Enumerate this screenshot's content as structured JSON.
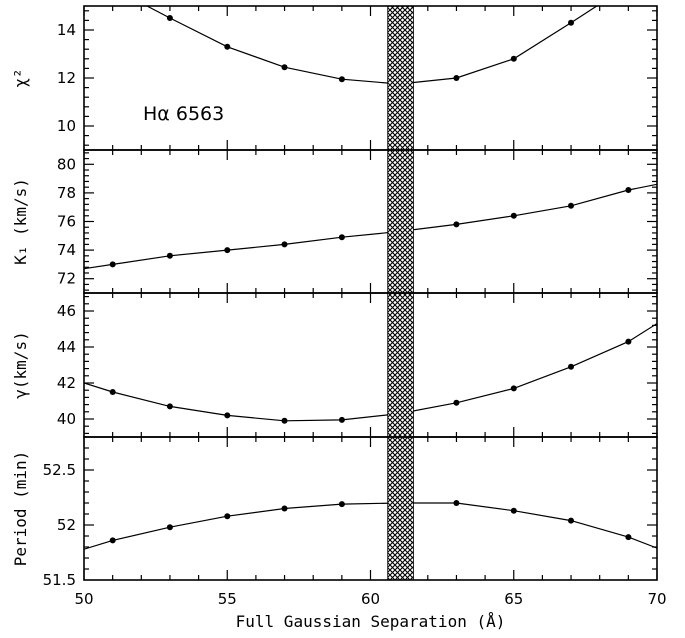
{
  "chart_data": {
    "type": "line",
    "xlabel": "Full Gaussian Separation (Å)",
    "xlim": [
      50,
      70
    ],
    "xticks": [
      50,
      55,
      60,
      65,
      70
    ],
    "shaded_band": [
      60.6,
      61.5
    ],
    "annotation": "Hα 6563",
    "panels": [
      {
        "ylabel": "χ²",
        "ylim": [
          9,
          15
        ],
        "yticks": [
          10,
          12,
          14
        ],
        "x": [
          53,
          55,
          57,
          59,
          61,
          63,
          65,
          67
        ],
        "y": [
          14.5,
          13.3,
          12.45,
          11.95,
          11.75,
          12.0,
          12.8,
          14.3
        ],
        "curve": [
          [
            52.2,
            15
          ],
          [
            53,
            14.5
          ],
          [
            55,
            13.3
          ],
          [
            57,
            12.45
          ],
          [
            59,
            11.95
          ],
          [
            61,
            11.75
          ],
          [
            63,
            12.0
          ],
          [
            65,
            12.8
          ],
          [
            67,
            14.3
          ],
          [
            67.9,
            15
          ]
        ]
      },
      {
        "ylabel": "K₁ (km/s)",
        "ylim": [
          71,
          81
        ],
        "yticks": [
          72,
          74,
          76,
          78,
          80
        ],
        "x": [
          51,
          53,
          55,
          57,
          59,
          61,
          63,
          65,
          67,
          69
        ],
        "y": [
          73.0,
          73.6,
          74.0,
          74.4,
          74.9,
          75.3,
          75.8,
          76.4,
          77.1,
          78.2
        ],
        "curve": [
          [
            50,
            72.7
          ],
          [
            51,
            73.0
          ],
          [
            53,
            73.6
          ],
          [
            55,
            74.0
          ],
          [
            57,
            74.4
          ],
          [
            59,
            74.9
          ],
          [
            61,
            75.3
          ],
          [
            63,
            75.8
          ],
          [
            65,
            76.4
          ],
          [
            67,
            77.1
          ],
          [
            69,
            78.2
          ],
          [
            70,
            78.6
          ]
        ]
      },
      {
        "ylabel": "γ(km/s)",
        "ylim": [
          39,
          47
        ],
        "yticks": [
          40,
          42,
          44,
          46
        ],
        "x": [
          51,
          53,
          55,
          57,
          59,
          61,
          63,
          65,
          67,
          69
        ],
        "y": [
          41.5,
          40.7,
          40.2,
          39.9,
          39.95,
          40.3,
          40.9,
          41.7,
          42.9,
          44.3
        ],
        "curve": [
          [
            50,
            42.0
          ],
          [
            51,
            41.5
          ],
          [
            53,
            40.7
          ],
          [
            55,
            40.2
          ],
          [
            57,
            39.9
          ],
          [
            59,
            39.95
          ],
          [
            61,
            40.3
          ],
          [
            63,
            40.9
          ],
          [
            65,
            41.7
          ],
          [
            67,
            42.9
          ],
          [
            69,
            44.3
          ],
          [
            70,
            45.3
          ]
        ]
      },
      {
        "ylabel": "Period (min)",
        "ylim": [
          51.5,
          52.8
        ],
        "yticks": [
          51.5,
          52,
          52.5
        ],
        "ytick_labels": [
          "51.5",
          "52",
          "52.5"
        ],
        "x": [
          51,
          53,
          55,
          57,
          59,
          61,
          63,
          65,
          67,
          69
        ],
        "y": [
          51.86,
          51.98,
          52.08,
          52.15,
          52.19,
          52.2,
          52.2,
          52.13,
          52.04,
          51.89
        ],
        "curve": [
          [
            50,
            51.78
          ],
          [
            51,
            51.86
          ],
          [
            53,
            51.98
          ],
          [
            55,
            52.08
          ],
          [
            57,
            52.15
          ],
          [
            59,
            52.19
          ],
          [
            61,
            52.2
          ],
          [
            63,
            52.2
          ],
          [
            65,
            52.13
          ],
          [
            67,
            52.04
          ],
          [
            69,
            51.89
          ],
          [
            70,
            51.79
          ]
        ]
      }
    ]
  }
}
